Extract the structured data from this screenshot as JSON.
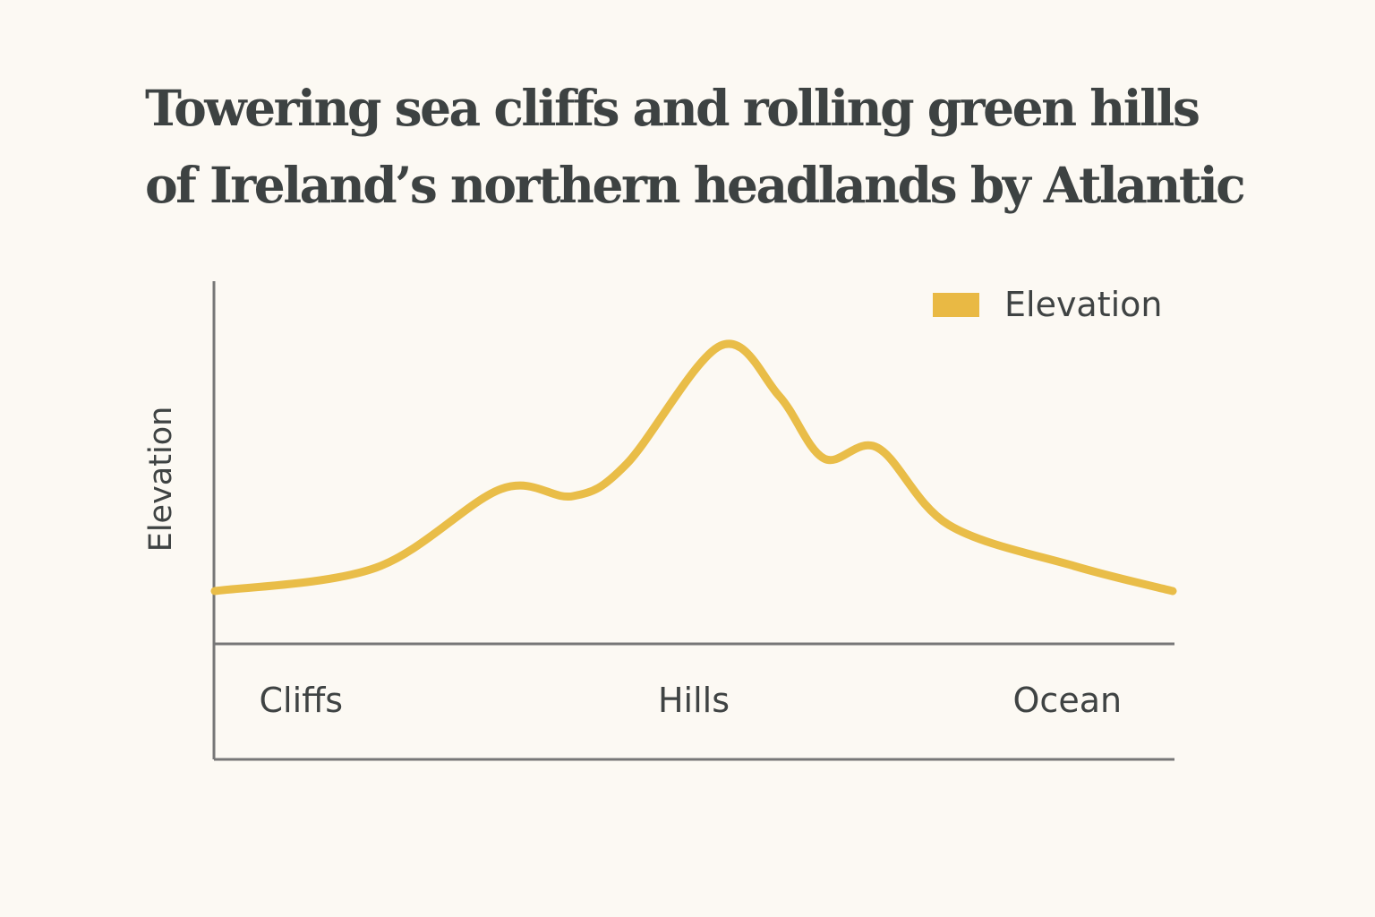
{
  "chart_data": {
    "type": "line",
    "title": "Towering sea cliffs and rolling green hills of Ireland’s northern headlands by Atlantic",
    "title_lines": [
      "Towering sea cliffs and rolling green hills",
      "of Ireland’s northern headlands by Atlantic"
    ],
    "xlabel": "",
    "ylabel": "Elevation",
    "x_tick_labels": [
      "Cliffs",
      "Hills",
      "Ocean"
    ],
    "x_tick_positions": [
      9,
      50,
      89
    ],
    "xlim": [
      0,
      100
    ],
    "ylim": [
      0,
      100
    ],
    "grid": false,
    "legend": {
      "position": "top-right",
      "entries": [
        "Elevation"
      ]
    },
    "series": [
      {
        "name": "Elevation",
        "color": "#e9bd48",
        "x": [
          0,
          16.8,
          29.9,
          37.4,
          43,
          52.8,
          58.9,
          63.6,
          69.2,
          76.6,
          89.7,
          100
        ],
        "y": [
          14.5,
          21,
          43,
          41,
          50,
          83,
          69,
          51.5,
          54.5,
          33,
          21.5,
          14.5
        ]
      }
    ]
  }
}
